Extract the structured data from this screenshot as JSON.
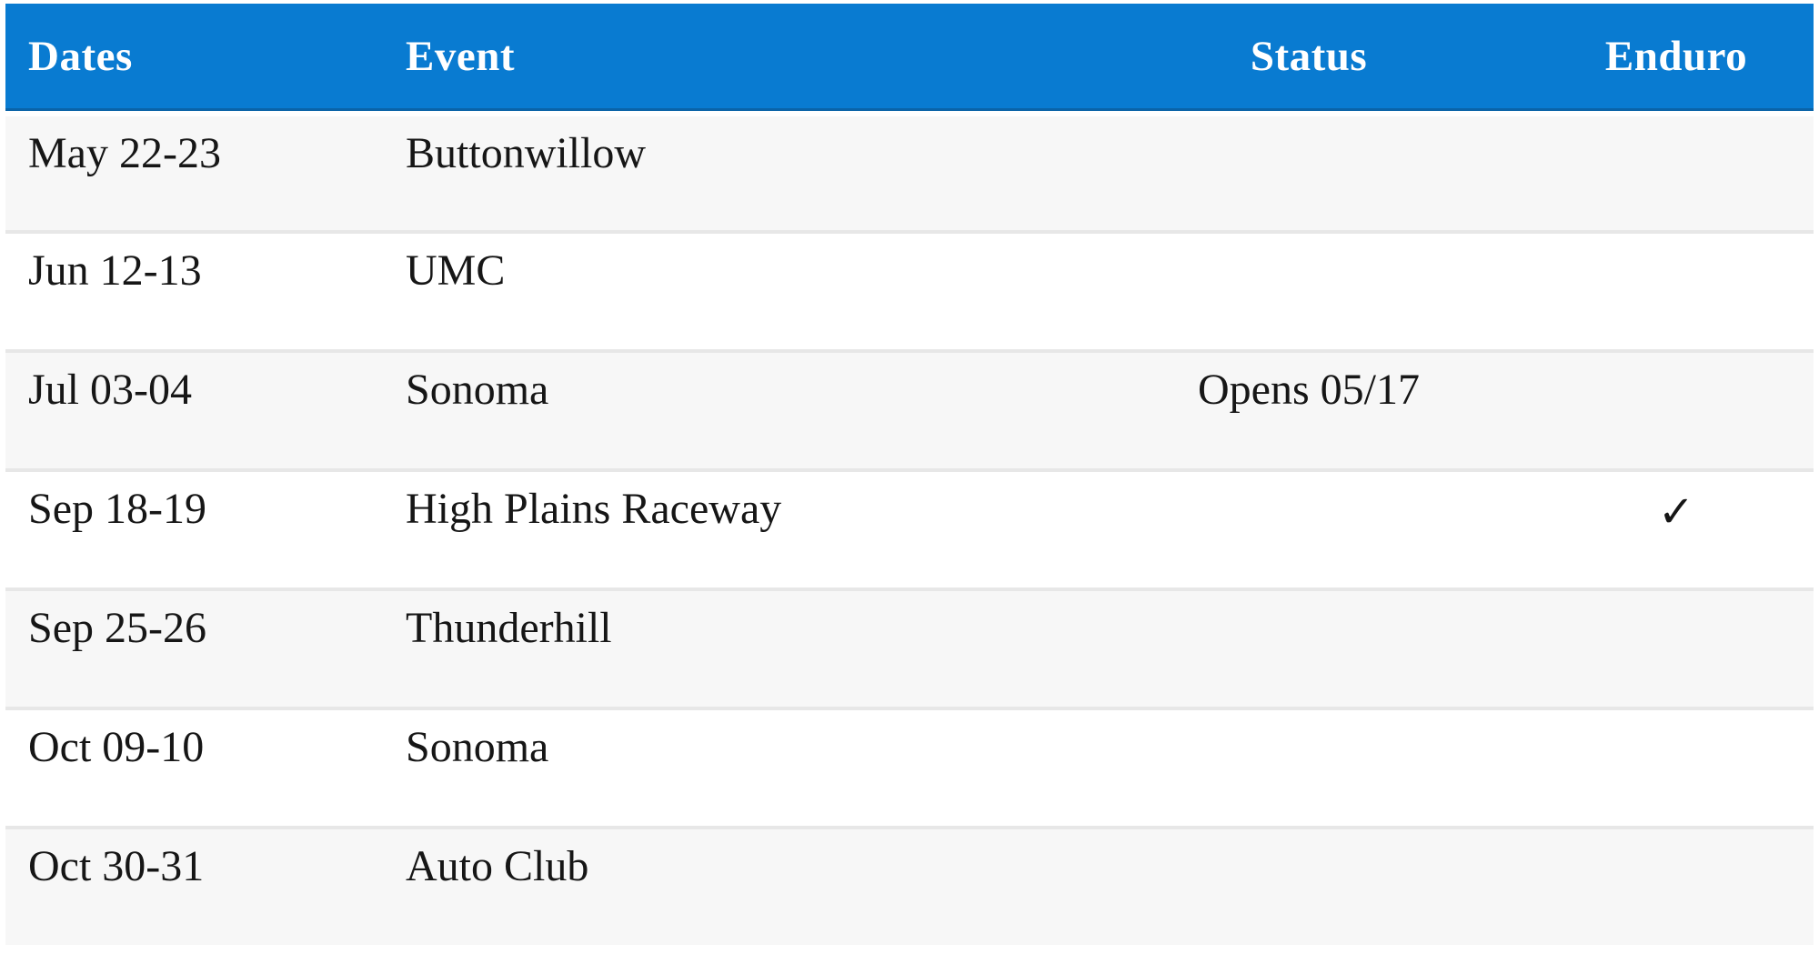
{
  "table": {
    "columns": [
      {
        "key": "dates",
        "label": "Dates",
        "align": "left"
      },
      {
        "key": "event",
        "label": "Event",
        "align": "left"
      },
      {
        "key": "status",
        "label": "Status",
        "align": "center"
      },
      {
        "key": "enduro",
        "label": "Enduro",
        "align": "center"
      }
    ],
    "rows": [
      {
        "dates": "May 22-23",
        "event": "Buttonwillow",
        "status": "",
        "enduro": false
      },
      {
        "dates": "Jun 12-13",
        "event": "UMC",
        "status": "",
        "enduro": false
      },
      {
        "dates": "Jul 03-04",
        "event": "Sonoma",
        "status": "Opens 05/17",
        "enduro": false
      },
      {
        "dates": "Sep 18-19",
        "event": "High Plains Raceway",
        "status": "",
        "enduro": true
      },
      {
        "dates": "Sep 25-26",
        "event": "Thunderhill",
        "status": "",
        "enduro": false
      },
      {
        "dates": "Oct 09-10",
        "event": "Sonoma",
        "status": "",
        "enduro": false
      },
      {
        "dates": "Oct 30-31",
        "event": "Auto Club",
        "status": "",
        "enduro": false
      }
    ],
    "check_glyph": "✓"
  },
  "colors": {
    "header_bg": "#097bd1",
    "header_edge": "#0a63a8",
    "header_text": "#ffffff",
    "stripe_bg": "#f7f7f7",
    "row_divider": "#e7e7e7",
    "body_text": "#161616",
    "page_bg": "#ffffff"
  }
}
